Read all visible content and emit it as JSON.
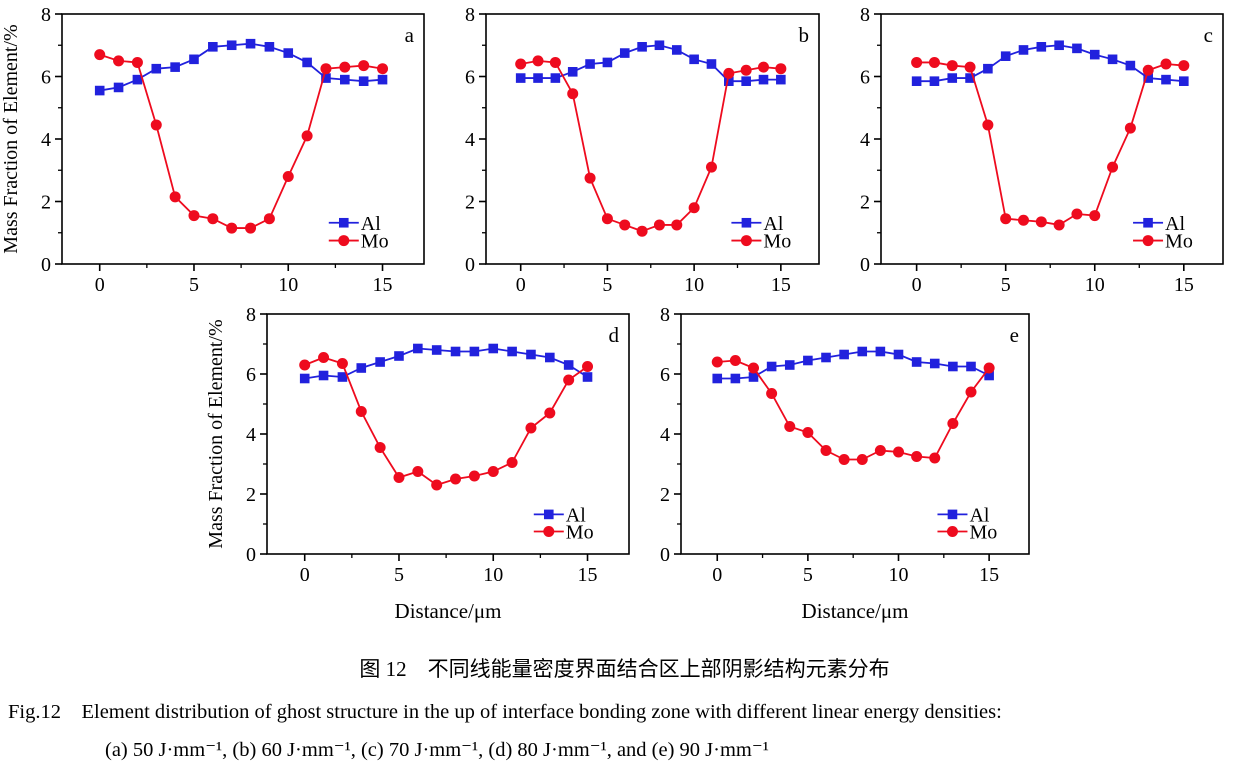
{
  "figure": {
    "caption_zh": "图 12　不同线能量密度界面结合区上部阴影结构元素分布",
    "caption_en": "Fig.12　Element distribution of ghost structure in the up of interface bonding zone with different linear energy densities:",
    "caption_en2": "(a) 50 J·mm⁻¹, (b) 60 J·mm⁻¹, (c) 70 J·mm⁻¹, (d) 80 J·mm⁻¹, and (e) 90 J·mm⁻¹"
  },
  "colors": {
    "al_blue": "#2121dd",
    "mo_red": "#ee0b1e",
    "axis_black": "#000000"
  },
  "chart_data": [
    {
      "id": "a",
      "type": "line",
      "panel_label": "a",
      "ylabel": "Mass Fraction of Element/%",
      "xlabel": "",
      "xlim": [
        -2,
        17.2
      ],
      "ylim": [
        0,
        8
      ],
      "xticks": [
        0,
        5,
        10,
        15
      ],
      "xminor": [
        2.5,
        7.5,
        12.5
      ],
      "yticks": [
        0,
        2,
        4,
        6,
        8
      ],
      "yminor": [
        1,
        3,
        5,
        7
      ],
      "x": [
        0,
        1,
        2,
        3,
        4,
        5,
        6,
        7,
        8,
        9,
        10,
        11,
        12,
        13,
        14,
        15
      ],
      "series": [
        {
          "name": "Al",
          "marker": "square",
          "color": "#2121dd",
          "values": [
            5.55,
            5.65,
            5.9,
            6.25,
            6.3,
            6.55,
            6.95,
            7.0,
            7.05,
            6.95,
            6.75,
            6.45,
            5.95,
            5.9,
            5.85,
            5.9
          ]
        },
        {
          "name": "Mo",
          "marker": "circle",
          "color": "#ee0b1e",
          "values": [
            6.7,
            6.5,
            6.45,
            4.45,
            2.15,
            1.55,
            1.45,
            1.15,
            1.15,
            1.45,
            2.8,
            4.1,
            6.25,
            6.3,
            6.35,
            6.25
          ]
        }
      ],
      "legend": {
        "entries": [
          "Al",
          "Mo"
        ],
        "position": "bottom-right"
      }
    },
    {
      "id": "b",
      "type": "line",
      "panel_label": "b",
      "ylabel": "",
      "xlabel": "",
      "xlim": [
        -2,
        17.2
      ],
      "ylim": [
        0,
        8
      ],
      "xticks": [
        0,
        5,
        10,
        15
      ],
      "xminor": [
        2.5,
        7.5,
        12.5
      ],
      "yticks": [
        0,
        2,
        4,
        6,
        8
      ],
      "yminor": [
        1,
        3,
        5,
        7
      ],
      "x": [
        0,
        1,
        2,
        3,
        4,
        5,
        6,
        7,
        8,
        9,
        10,
        11,
        12,
        13,
        14,
        15
      ],
      "series": [
        {
          "name": "Al",
          "marker": "square",
          "color": "#2121dd",
          "values": [
            5.95,
            5.95,
            5.95,
            6.15,
            6.4,
            6.45,
            6.75,
            6.95,
            7.0,
            6.85,
            6.55,
            6.4,
            5.85,
            5.85,
            5.9,
            5.9
          ]
        },
        {
          "name": "Mo",
          "marker": "circle",
          "color": "#ee0b1e",
          "values": [
            6.4,
            6.5,
            6.45,
            5.45,
            2.75,
            1.45,
            1.25,
            1.05,
            1.25,
            1.25,
            1.8,
            3.1,
            6.1,
            6.2,
            6.3,
            6.25
          ]
        }
      ],
      "legend": {
        "entries": [
          "Al",
          "Mo"
        ],
        "position": "bottom-right"
      }
    },
    {
      "id": "c",
      "type": "line",
      "panel_label": "c",
      "ylabel": "",
      "xlabel": "",
      "xlim": [
        -2,
        17.2
      ],
      "ylim": [
        0,
        8
      ],
      "xticks": [
        0,
        5,
        10,
        15
      ],
      "xminor": [
        2.5,
        7.5,
        12.5
      ],
      "yticks": [
        0,
        2,
        4,
        6,
        8
      ],
      "yminor": [
        1,
        3,
        5,
        7
      ],
      "x": [
        0,
        1,
        2,
        3,
        4,
        5,
        6,
        7,
        8,
        9,
        10,
        11,
        12,
        13,
        14,
        15
      ],
      "series": [
        {
          "name": "Al",
          "marker": "square",
          "color": "#2121dd",
          "values": [
            5.85,
            5.85,
            5.95,
            5.95,
            6.25,
            6.65,
            6.85,
            6.95,
            7.0,
            6.9,
            6.7,
            6.55,
            6.35,
            5.95,
            5.9,
            5.85
          ]
        },
        {
          "name": "Mo",
          "marker": "circle",
          "color": "#ee0b1e",
          "values": [
            6.45,
            6.45,
            6.35,
            6.3,
            4.45,
            1.45,
            1.4,
            1.35,
            1.25,
            1.6,
            1.55,
            3.1,
            4.35,
            6.2,
            6.4,
            6.35
          ]
        }
      ],
      "legend": {
        "entries": [
          "Al",
          "Mo"
        ],
        "position": "bottom-right"
      }
    },
    {
      "id": "d",
      "type": "line",
      "panel_label": "d",
      "ylabel": "Mass Fraction of Element/%",
      "xlabel": "Distance/μm",
      "xlim": [
        -2,
        17.2
      ],
      "ylim": [
        0,
        8
      ],
      "xticks": [
        0,
        5,
        10,
        15
      ],
      "xminor": [
        2.5,
        7.5,
        12.5
      ],
      "yticks": [
        0,
        2,
        4,
        6,
        8
      ],
      "yminor": [
        1,
        3,
        5,
        7
      ],
      "x": [
        0,
        1,
        2,
        3,
        4,
        5,
        6,
        7,
        8,
        9,
        10,
        11,
        12,
        13,
        14,
        15
      ],
      "series": [
        {
          "name": "Al",
          "marker": "square",
          "color": "#2121dd",
          "values": [
            5.85,
            5.95,
            5.9,
            6.2,
            6.4,
            6.6,
            6.85,
            6.8,
            6.75,
            6.75,
            6.85,
            6.75,
            6.65,
            6.55,
            6.3,
            5.9
          ]
        },
        {
          "name": "Mo",
          "marker": "circle",
          "color": "#ee0b1e",
          "values": [
            6.3,
            6.55,
            6.35,
            4.75,
            3.55,
            2.55,
            2.75,
            2.3,
            2.5,
            2.6,
            2.75,
            3.05,
            4.2,
            4.7,
            5.8,
            6.25
          ]
        }
      ],
      "legend": {
        "entries": [
          "Al",
          "Mo"
        ],
        "position": "bottom-right"
      }
    },
    {
      "id": "e",
      "type": "line",
      "panel_label": "e",
      "ylabel": "",
      "xlabel": "Distance/μm",
      "xlim": [
        -2,
        17.2
      ],
      "ylim": [
        0,
        8
      ],
      "xticks": [
        0,
        5,
        10,
        15
      ],
      "xminor": [
        2.5,
        7.5,
        12.5
      ],
      "yticks": [
        0,
        2,
        4,
        6,
        8
      ],
      "yminor": [
        1,
        3,
        5,
        7
      ],
      "x": [
        0,
        1,
        2,
        3,
        4,
        5,
        6,
        7,
        8,
        9,
        10,
        11,
        12,
        13,
        14,
        15
      ],
      "series": [
        {
          "name": "Al",
          "marker": "square",
          "color": "#2121dd",
          "values": [
            5.85,
            5.85,
            5.9,
            6.25,
            6.3,
            6.45,
            6.55,
            6.65,
            6.75,
            6.75,
            6.65,
            6.4,
            6.35,
            6.25,
            6.25,
            5.95
          ]
        },
        {
          "name": "Mo",
          "marker": "circle",
          "color": "#ee0b1e",
          "values": [
            6.4,
            6.45,
            6.2,
            5.35,
            4.25,
            4.05,
            3.45,
            3.15,
            3.15,
            3.45,
            3.4,
            3.25,
            3.2,
            4.35,
            5.4,
            6.2
          ]
        }
      ],
      "legend": {
        "entries": [
          "Al",
          "Mo"
        ],
        "position": "bottom-right"
      }
    }
  ]
}
